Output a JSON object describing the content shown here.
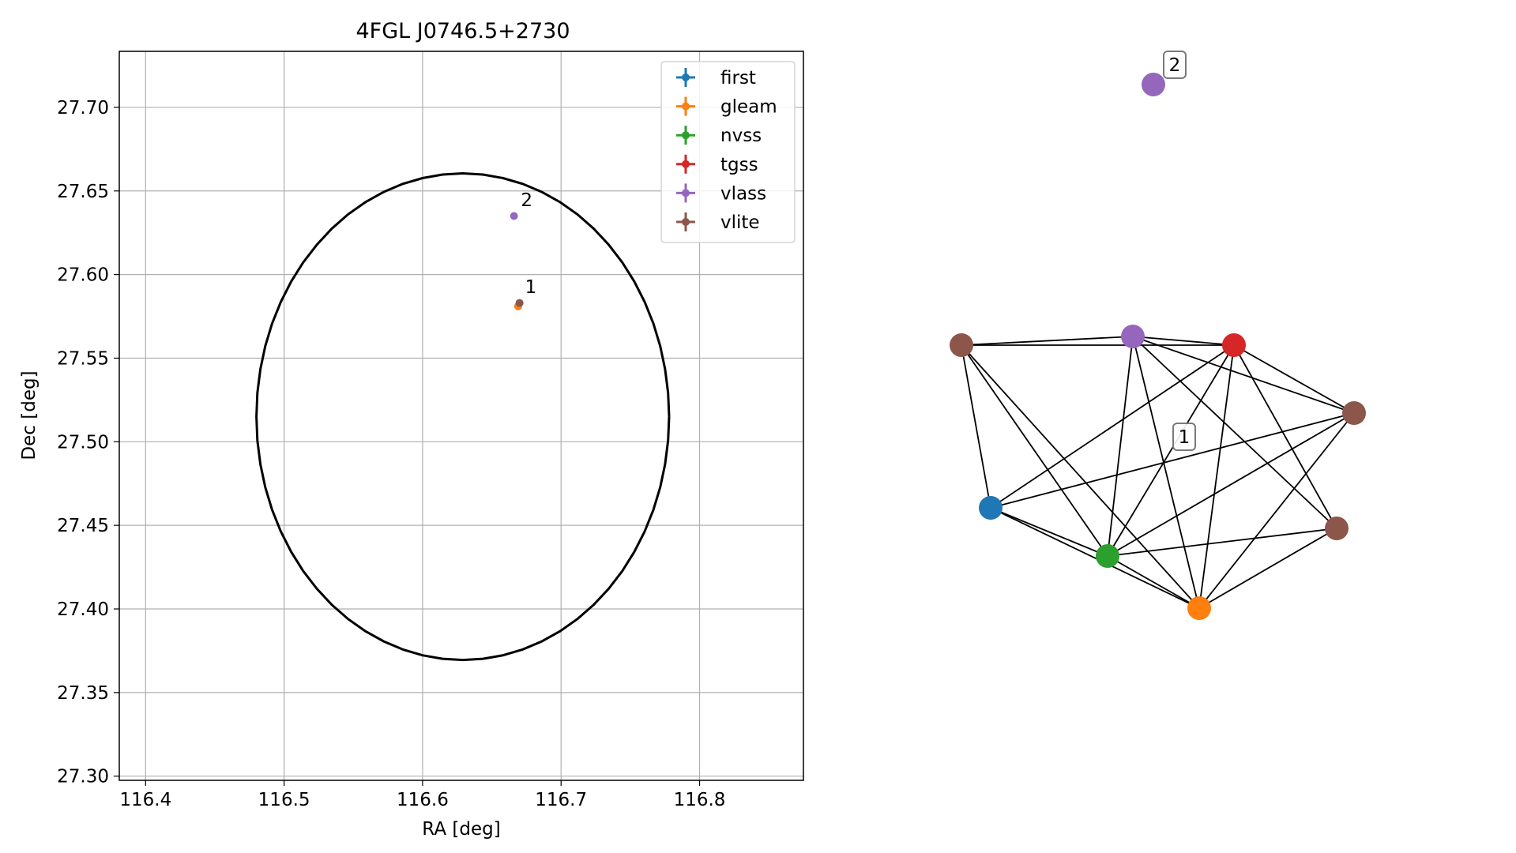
{
  "chart_data": [
    {
      "type": "scatter",
      "title": "4FGL J0746.5+2730",
      "xlabel": "RA [deg]",
      "ylabel": "Dec [deg]",
      "xlim": [
        116.381,
        116.875
      ],
      "ylim": [
        27.2975,
        27.7335
      ],
      "x_ticks": [
        116.4,
        116.5,
        116.6,
        116.7,
        116.8
      ],
      "x_tick_labels": [
        "116.4",
        "116.5",
        "116.6",
        "116.7",
        "116.8"
      ],
      "y_ticks": [
        27.3,
        27.35,
        27.4,
        27.45,
        27.5,
        27.55,
        27.6,
        27.65,
        27.7
      ],
      "y_tick_labels": [
        "27.30",
        "27.35",
        "27.40",
        "27.45",
        "27.50",
        "27.55",
        "27.60",
        "27.65",
        "27.70"
      ],
      "grid": true,
      "legend_position": "top-right",
      "series": [
        {
          "name": "first",
          "color": "#1f77b4",
          "x": [],
          "y": []
        },
        {
          "name": "gleam",
          "color": "#ff7f0e",
          "x": [
            116.669
          ],
          "y": [
            27.581
          ]
        },
        {
          "name": "nvss",
          "color": "#2ca02c",
          "x": [],
          "y": []
        },
        {
          "name": "tgss",
          "color": "#d62728",
          "x": [],
          "y": []
        },
        {
          "name": "vlass",
          "color": "#9467bd",
          "x": [
            116.666
          ],
          "y": [
            27.635
          ]
        },
        {
          "name": "vlite",
          "color": "#8c564b",
          "x": [
            116.67
          ],
          "y": [
            27.583
          ]
        }
      ],
      "ellipse": {
        "center": [
          116.629,
          27.515
        ],
        "semi_axis_ra": 0.149,
        "semi_axis_dec": 0.1455,
        "color": "#000000"
      },
      "annotations": [
        {
          "text": "1",
          "x": 116.674,
          "y": 27.589
        },
        {
          "text": "2",
          "x": 116.671,
          "y": 27.641
        }
      ]
    },
    {
      "type": "network",
      "nodes": [
        {
          "id": "a",
          "color": "#9467bd",
          "label": "2"
        },
        {
          "id": "b",
          "color": "#8c564b"
        },
        {
          "id": "c",
          "color": "#9467bd"
        },
        {
          "id": "d",
          "color": "#d62728"
        },
        {
          "id": "e",
          "color": "#8c564b"
        },
        {
          "id": "f",
          "color": "#1f77b4"
        },
        {
          "id": "g",
          "color": "#8c564b"
        },
        {
          "id": "h",
          "color": "#2ca02c"
        },
        {
          "id": "i",
          "color": "#ff7f0e"
        }
      ],
      "edges": [
        [
          "b",
          "c"
        ],
        [
          "b",
          "d"
        ],
        [
          "b",
          "f"
        ],
        [
          "b",
          "h"
        ],
        [
          "b",
          "i"
        ],
        [
          "c",
          "d"
        ],
        [
          "c",
          "e"
        ],
        [
          "c",
          "g"
        ],
        [
          "c",
          "h"
        ],
        [
          "c",
          "i"
        ],
        [
          "d",
          "e"
        ],
        [
          "d",
          "f"
        ],
        [
          "d",
          "g"
        ],
        [
          "d",
          "h"
        ],
        [
          "d",
          "i"
        ],
        [
          "e",
          "f"
        ],
        [
          "e",
          "h"
        ],
        [
          "e",
          "i"
        ],
        [
          "f",
          "h"
        ],
        [
          "f",
          "i"
        ],
        [
          "g",
          "h"
        ],
        [
          "g",
          "i"
        ],
        [
          "h",
          "i"
        ]
      ],
      "group_labels": [
        "1",
        "2"
      ]
    }
  ]
}
